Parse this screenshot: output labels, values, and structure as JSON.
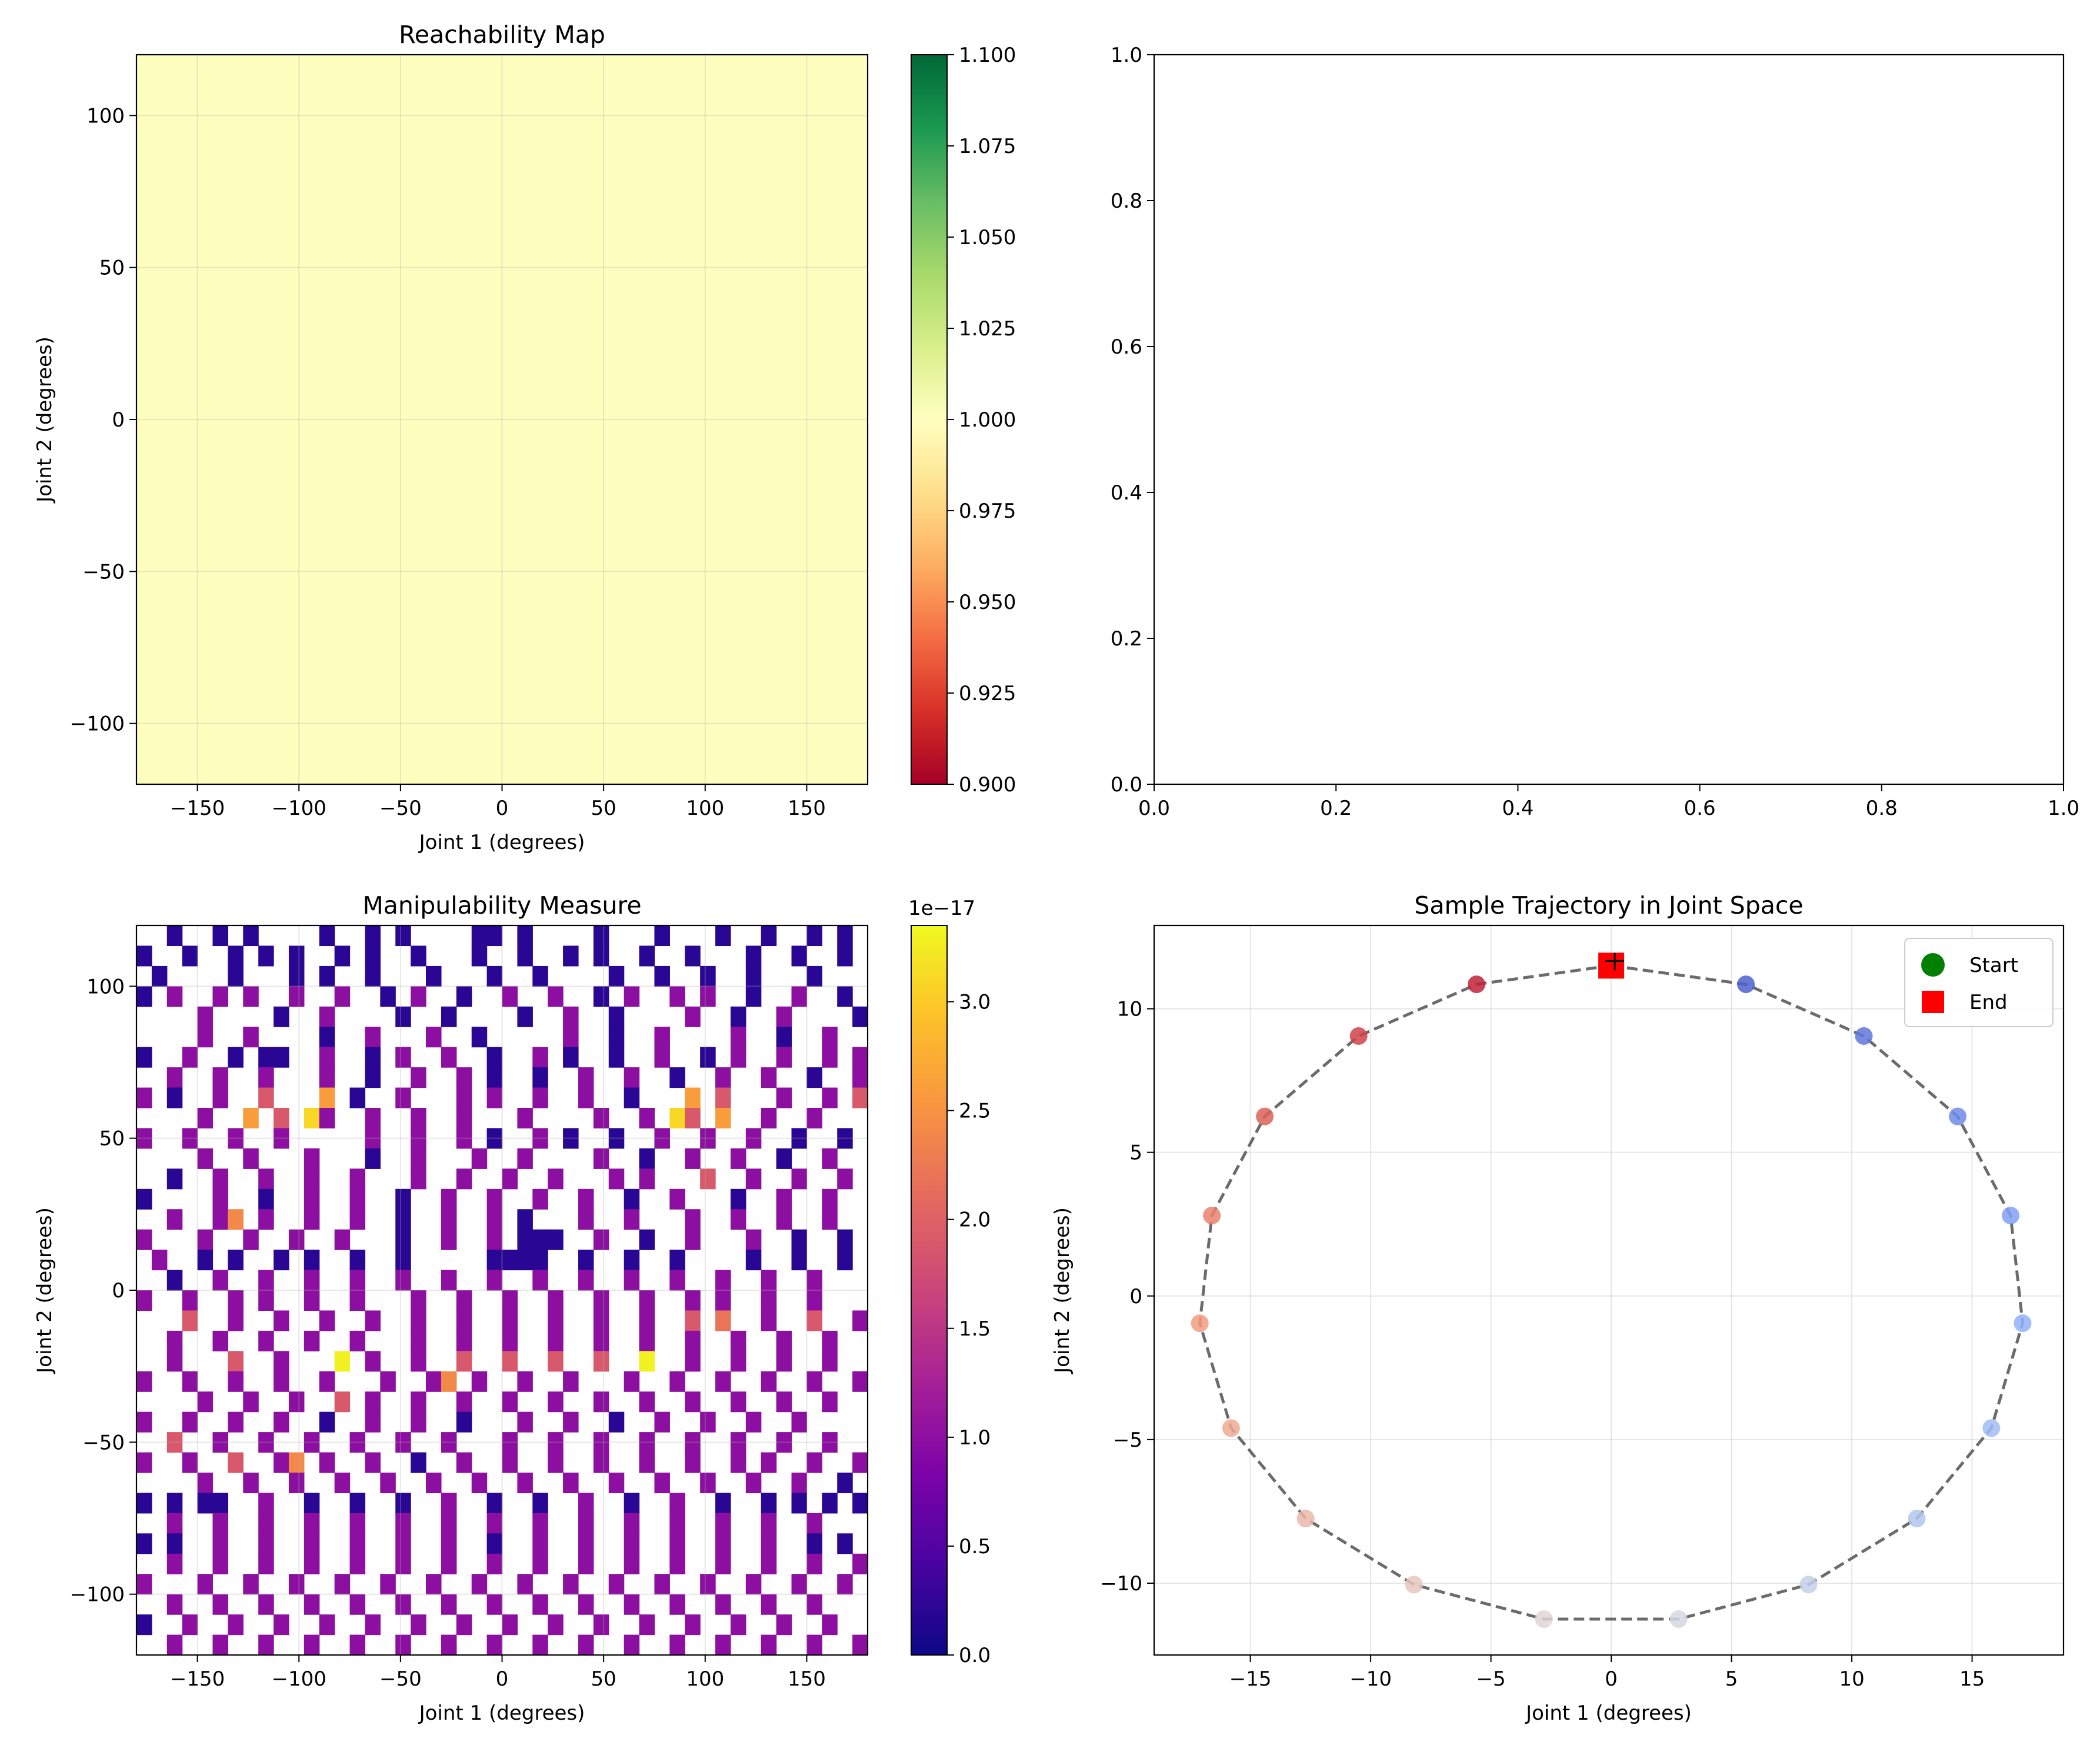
{
  "figure": {
    "background": "#ffffff"
  },
  "chart_data": [
    {
      "id": "reachability",
      "type": "heatmap",
      "title": "Reachability Map",
      "xlabel": "Joint 1 (degrees)",
      "ylabel": "Joint 2 (degrees)",
      "xlim": [
        -180,
        180
      ],
      "ylim": [
        -120,
        120
      ],
      "xticks": [
        "−150",
        "−100",
        "−50",
        "0",
        "50",
        "100",
        "150"
      ],
      "xtick_values": [
        -150,
        -100,
        -50,
        0,
        50,
        100,
        150
      ],
      "yticks": [
        "−100",
        "−50",
        "0",
        "50",
        "100"
      ],
      "ytick_values": [
        -100,
        -50,
        0,
        50,
        100
      ],
      "grid": true,
      "values_all": 1.0,
      "fill_color": "#feffbe",
      "colormap": "RdYlGn",
      "colorbar": {
        "vmin": 0.9,
        "vmax": 1.1,
        "tick_values": [
          0.9,
          0.925,
          0.95,
          0.975,
          1.0,
          1.025,
          1.05,
          1.075,
          1.1
        ],
        "ticks": [
          "0.900",
          "0.925",
          "0.950",
          "0.975",
          "1.000",
          "1.025",
          "1.050",
          "1.075",
          "1.100"
        ]
      }
    },
    {
      "id": "empty",
      "type": "scatter",
      "title": "",
      "xlim": [
        0,
        1
      ],
      "ylim": [
        0,
        1
      ],
      "xticks": [
        "0.0",
        "0.2",
        "0.4",
        "0.6",
        "0.8",
        "1.0"
      ],
      "xtick_values": [
        0,
        0.2,
        0.4,
        0.6,
        0.8,
        1.0
      ],
      "yticks": [
        "0.0",
        "0.2",
        "0.4",
        "0.6",
        "0.8",
        "1.0"
      ],
      "ytick_values": [
        0,
        0.2,
        0.4,
        0.6,
        0.8,
        1.0
      ],
      "grid": false
    },
    {
      "id": "manipulability",
      "type": "heatmap",
      "title": "Manipulability Measure",
      "xlabel": "Joint 1 (degrees)",
      "ylabel": "Joint 2 (degrees)",
      "xlim": [
        -180,
        180
      ],
      "ylim": [
        -120,
        120
      ],
      "xticks": [
        "−150",
        "−100",
        "−50",
        "0",
        "50",
        "100",
        "150"
      ],
      "xtick_values": [
        -150,
        -100,
        -50,
        0,
        50,
        100,
        150
      ],
      "yticks": [
        "−100",
        "−50",
        "0",
        "50",
        "100"
      ],
      "ytick_values": [
        -100,
        -50,
        0,
        50,
        100
      ],
      "grid": true,
      "colormap": "plasma",
      "grid_shape": [
        36,
        48
      ],
      "value_scale": "1e−17",
      "vmin": 0.0,
      "vmax": 3.35,
      "rows_top_to_bottom": [
        "..0..0.0....0..0.0....00.0....0...0...0..0..0.0.",
        "0..0..0.0.0..0.0..0...0..0..0.0..0..0...0..0..0.",
        ".0....0...0.0..0...0...0..0....0..0..0..0...0...",
        "0.1..1.1..1..1..0.1..0..1..1..0.1..1.1..0..1..0.",
        "....1....0..1....0..0....0..1..0....1..0..1....0",
        "....1..1....0..1...1..0.....1..0..1....1..0..1..",
        "0..1..0.00..1..0.1..1..0..1.0..0..1..0.1..1..1.1",
        "..1..1..1...1..0..1..1.0..0..1..1..0..1..1..0..1",
        "1.0..1..2...1.0..1...1.1..1..1..0...1.2...1..1.2",
        "....1..3.2..1..1..1..1...1....1..1..2.3..1..1...",
        "1..1..1..1.....1..1..1.0..1.0..0..1..1..1..0..0.",
        "....1..1...1...0..1...1..1....1..0..1..1..0..1..",
        "..0..1..1..1..1...1..1..1..1...1.1...2..1..1..1.",
        "0....1..0..1..1..0..1..1..1..1..0..1...0..1..1..",
        "..1..1..1..1..1..0..1..1.0...1..1...1..1..1..1..",
        "1...1..1..1..1...0..1..1.000..1..0..1...1..0..0.",
        ".1..0.0..0.0..0..0.....0000..0..0..0....0..0..0.",
        "..0..1..1..1..1..1..1..1..1..1..1..1..1..1..1...",
        "1..1..1.1..1..1...1..1..1..1..1..1..1.1..1..1...",
        "...2..1..1..1..1..1..1..1..1..1..1..2.1..1..2..1",
        "..1..1..1..1..1...1..1..1..1..1..1..1..1..1..1..",
        "..1...2..1...3.1..1..2..2..2..2..3..1..1..1..1..",
        "1..1..1..1..1...1..1..1..1..1...1..1..1..1..1..1",
        "....1..1..1..2.1..1..1..1..1..1..1..1..1..1..1..",
        "1..1..1..1..0..1..1..0...1..1..0..1..1..1..1....",
        "..2..1..1..1..1..1..1...1..1..1..1..1..1..1..1..",
        "1..1..2..1..1..1..0..1..1..1..1..1..1..1.1..1..1",
        "....1..1..1..1..1..1..1..1..1..1..1..1..1..1..0.",
        "0.0.00..1..0..0..0..1..0..0..1..0..1..0..0.0.0.0",
        "..1..1..1..1..1..1..1..1..1..1..1..1..1..1..1...",
        "0.0..1..1..1..1..1..1..0..1..1..1..1..1..1..0.0.",
        "..1..1..1..1..1..1..1..1..1..1..1..1..1..1..1..1",
        "1...1..1..1..1..1..1..1..1..1..1..1..1..1..1..1.",
        "..1..1..1..1..1..1..1..1..1..1..1..1..1..1..1...",
        "0..1..1..1..1..1..1..1..1..1..1..1..1..1..1..1..",
        "..1..1..1..1..1..1..1..1..1..1..1..1..1..1..1..1"
      ],
      "level_values": {
        "0": 0.2,
        "1": 1.0,
        "2": 1.9,
        "3": 2.6
      },
      "accents": [
        {
          "row": 21,
          "col": 13,
          "value": 3.3
        },
        {
          "row": 21,
          "col": 33,
          "value": 3.3
        },
        {
          "row": 9,
          "col": 11,
          "value": 3.1
        },
        {
          "row": 9,
          "col": 35,
          "value": 3.1
        },
        {
          "row": 8,
          "col": 12,
          "value": 2.6
        },
        {
          "row": 8,
          "col": 36,
          "value": 2.6
        },
        {
          "row": 14,
          "col": 6,
          "value": 2.4
        },
        {
          "row": 22,
          "col": 20,
          "value": 2.4
        },
        {
          "row": 26,
          "col": 10,
          "value": 2.4
        },
        {
          "row": 19,
          "col": 38,
          "value": 2.2
        }
      ],
      "colorbar": {
        "vmin": 0.0,
        "vmax": 3.35,
        "tick_values": [
          0.0,
          0.5,
          1.0,
          1.5,
          2.0,
          2.5,
          3.0
        ],
        "ticks": [
          "0.0",
          "0.5",
          "1.0",
          "1.5",
          "2.0",
          "2.5",
          "3.0"
        ]
      }
    },
    {
      "id": "trajectory",
      "type": "scatter",
      "title": "Sample Trajectory in Joint Space",
      "xlabel": "Joint 1 (degrees)",
      "ylabel": "Joint 2 (degrees)",
      "xlim": [
        -19,
        18.8
      ],
      "ylim": [
        -12.5,
        12.9
      ],
      "xticks": [
        "−15",
        "−10",
        "−5",
        "0",
        "5",
        "10",
        "15"
      ],
      "xtick_values": [
        -15,
        -10,
        -5,
        0,
        5,
        10,
        15
      ],
      "yticks": [
        "−10",
        "−5",
        "0",
        "5",
        "10"
      ],
      "ytick_values": [
        -10,
        -5,
        0,
        5,
        10
      ],
      "grid": true,
      "line_color": "#6b6b6b",
      "x": [
        0.0,
        5.6,
        10.5,
        14.4,
        16.6,
        17.1,
        15.8,
        12.7,
        8.2,
        2.8,
        -2.8,
        -8.2,
        -12.7,
        -15.8,
        -17.1,
        -16.6,
        -14.4,
        -10.5,
        -5.6,
        0.0
      ],
      "y": [
        11.5,
        10.85,
        9.05,
        6.25,
        2.8,
        -0.95,
        -4.6,
        -7.75,
        -10.05,
        -11.25,
        -11.25,
        -10.05,
        -7.75,
        -4.6,
        -0.95,
        2.8,
        6.25,
        9.05,
        10.85,
        11.5
      ],
      "colormap": "coolwarm",
      "legend": {
        "location": "top-right",
        "entries": [
          "Start",
          "End"
        ]
      },
      "start_color": "#008000",
      "end_color": "#ff0000",
      "start": {
        "x": 0.0,
        "y": 11.5
      },
      "end": {
        "x": 0.0,
        "y": 11.5
      }
    }
  ]
}
